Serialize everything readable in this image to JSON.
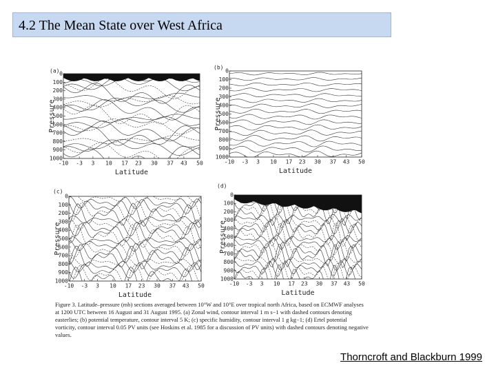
{
  "header": {
    "title": "4.2 The Mean State over West Africa"
  },
  "figure": {
    "panels": [
      {
        "label": "(a)",
        "y_label": "Pressure",
        "x_label": "Latitude",
        "y_ticks": [
          0,
          100,
          200,
          300,
          400,
          500,
          600,
          700,
          800,
          900,
          1000
        ],
        "x_ticks": [
          -10,
          -3,
          3,
          10,
          17,
          23,
          30,
          37,
          43,
          50
        ]
      },
      {
        "label": "(b)",
        "y_label": "Pressure",
        "x_label": "Latitude",
        "y_ticks": [
          0,
          100,
          200,
          300,
          400,
          500,
          600,
          700,
          800,
          900,
          1000
        ],
        "x_ticks": [
          -10,
          -3,
          3,
          10,
          17,
          23,
          30,
          37,
          43,
          50
        ]
      },
      {
        "label": "(c)",
        "y_label": "Pressure",
        "x_label": "Latitude",
        "y_ticks": [
          0,
          100,
          200,
          300,
          400,
          500,
          600,
          700,
          800,
          900,
          1000
        ],
        "x_ticks": [
          -10,
          -3,
          3,
          10,
          17,
          23,
          30,
          37,
          43,
          50
        ]
      },
      {
        "label": "(d)",
        "y_label": "Pressure",
        "x_label": "Latitude",
        "y_ticks": [
          0,
          100,
          200,
          300,
          400,
          500,
          600,
          700,
          800,
          900,
          1000
        ],
        "x_ticks": [
          -10,
          -3,
          3,
          10,
          17,
          23,
          30,
          37,
          43,
          50
        ]
      }
    ],
    "caption": "Figure 3.   Latitude–pressure (mb) sections averaged between 10°W and 10°E over tropical north Africa, based on ECMWF analyses at 1200 UTC between 16 August and 31 August 1995. (a) Zonal wind, contour interval 1 m s−1 with dashed contours denoting easterlies; (b) potential temperature, contour interval 5 K; (c) specific humidity, contour interval 1 g kg−1; (d) Ertel potential vorticity, contour interval 0.05 PV units (see Hoskins et al. 1985 for a discussion of PV units) with dashed contours denoting negative values."
  },
  "footer": {
    "citation": "Thorncroft and Blackburn 1999"
  }
}
